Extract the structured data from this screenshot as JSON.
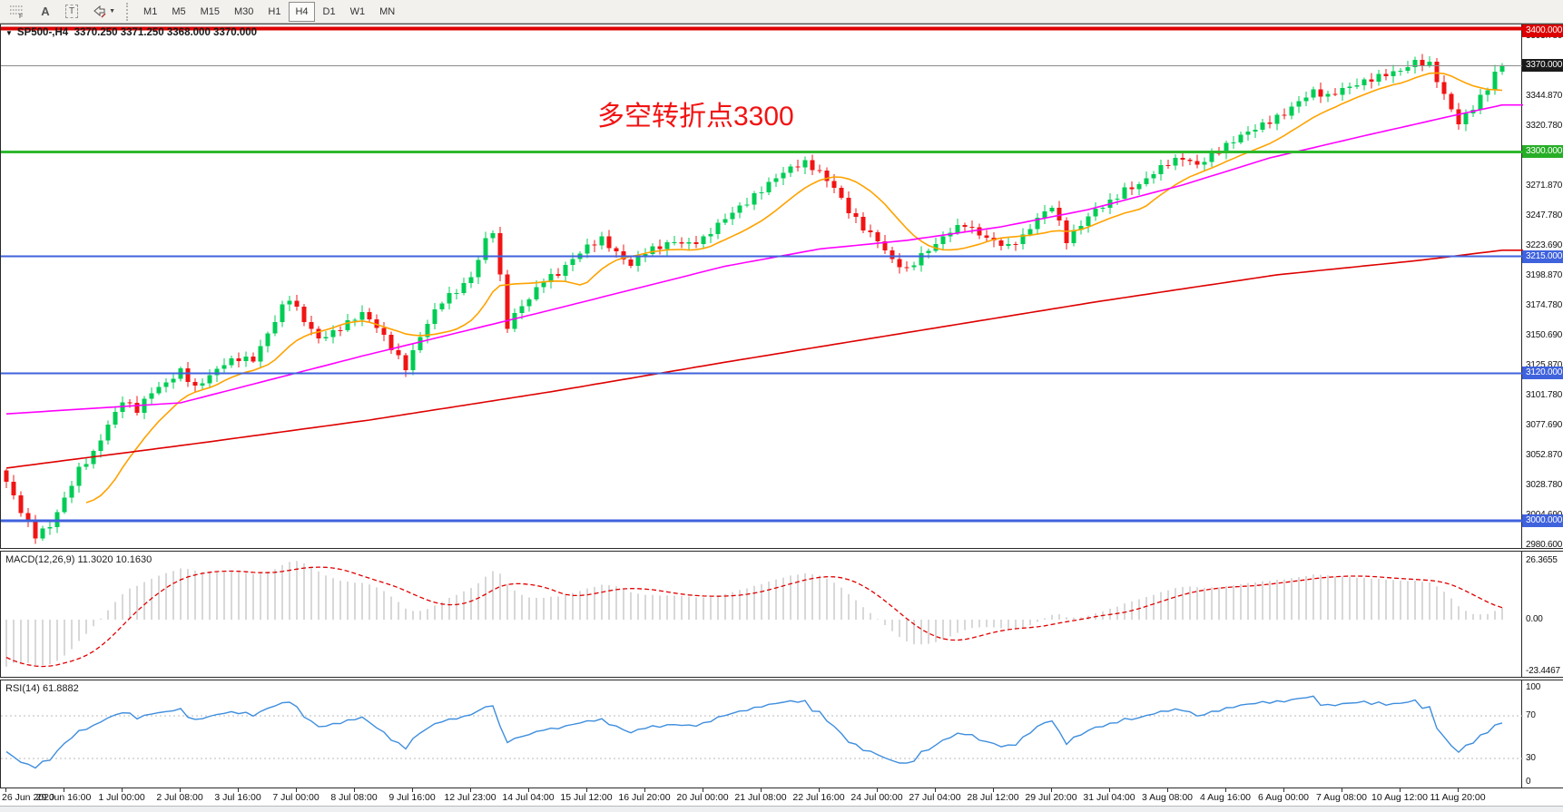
{
  "toolbar": {
    "icons": [
      {
        "name": "fibonacci-grid-icon"
      },
      {
        "name": "text-label-icon",
        "glyph": "A"
      },
      {
        "name": "text-box-icon",
        "glyph": "T"
      },
      {
        "name": "arrows-icon"
      }
    ],
    "timeframes": [
      "M1",
      "M5",
      "M15",
      "M30",
      "H1",
      "H4",
      "D1",
      "W1",
      "MN"
    ],
    "active_timeframe": "H4"
  },
  "chart": {
    "header": "SP500-,H4  3370.250 3371.250 3368.000 3370.000",
    "annotation": {
      "text": "多空转折点3300",
      "color": "#f21313"
    },
    "current_price": "3370.000",
    "price_axis": {
      "ticks": [
        [
          "3393.780",
          3393.78
        ],
        [
          "3344.870",
          3344.87
        ],
        [
          "3320.780",
          3320.78
        ],
        [
          "3296.690",
          3296.69
        ],
        [
          "3271.870",
          3271.87
        ],
        [
          "3247.780",
          3247.78
        ],
        [
          "3223.690",
          3223.69
        ],
        [
          "3198.870",
          3198.87
        ],
        [
          "3174.780",
          3174.78
        ],
        [
          "3150.690",
          3150.69
        ],
        [
          "3125.870",
          3125.87
        ],
        [
          "3101.780",
          3101.78
        ],
        [
          "3077.690",
          3077.69
        ],
        [
          "3052.870",
          3052.87
        ],
        [
          "3028.780",
          3028.78
        ],
        [
          "3004.690",
          3004.69
        ],
        [
          "2980.600",
          2980.6
        ]
      ],
      "badges": [
        {
          "text": "3400.000",
          "price": 3400,
          "bg": "#dd0000"
        },
        {
          "text": "3370.000",
          "price": 3370,
          "bg": "#1a1a1a"
        },
        {
          "text": "3300.000",
          "price": 3300,
          "bg": "#27ae27"
        },
        {
          "text": "3215.000",
          "price": 3215,
          "bg": "#3f62dd"
        },
        {
          "text": "3120.000",
          "price": 3120,
          "bg": "#3f62dd"
        },
        {
          "text": "3000.000",
          "price": 3000,
          "bg": "#3f62dd"
        }
      ]
    },
    "levels": [
      {
        "price": 3400,
        "color": "#dd0000",
        "width": 4
      },
      {
        "price": 3370,
        "color": "#8c8c8c",
        "width": 1
      },
      {
        "price": 3300,
        "color": "#2db92d",
        "width": 3
      },
      {
        "price": 3215,
        "color": "#3f62dd",
        "width": 2
      },
      {
        "price": 3120,
        "color": "#3f62dd",
        "width": 2
      },
      {
        "price": 3000,
        "color": "#3f62dd",
        "width": 3
      }
    ],
    "series": {
      "type": "candlestick",
      "bars": 207,
      "bull_color": "#00cc55",
      "bear_color": "#f01414",
      "close_anchors": [
        [
          0,
          3032
        ],
        [
          2,
          3008
        ],
        [
          4,
          2988
        ],
        [
          6,
          2996
        ],
        [
          8,
          3018
        ],
        [
          10,
          3042
        ],
        [
          12,
          3055
        ],
        [
          14,
          3078
        ],
        [
          16,
          3098
        ],
        [
          18,
          3090
        ],
        [
          20,
          3105
        ],
        [
          22,
          3112
        ],
        [
          24,
          3122
        ],
        [
          26,
          3108
        ],
        [
          28,
          3118
        ],
        [
          30,
          3128
        ],
        [
          32,
          3132
        ],
        [
          34,
          3131
        ],
        [
          36,
          3152
        ],
        [
          38,
          3174
        ],
        [
          39,
          3181
        ],
        [
          41,
          3163
        ],
        [
          43,
          3148
        ],
        [
          45,
          3153
        ],
        [
          47,
          3161
        ],
        [
          49,
          3169
        ],
        [
          51,
          3158
        ],
        [
          53,
          3141
        ],
        [
          55,
          3124
        ],
        [
          56,
          3138
        ],
        [
          58,
          3161
        ],
        [
          60,
          3179
        ],
        [
          62,
          3187
        ],
        [
          64,
          3198
        ],
        [
          66,
          3228
        ],
        [
          67,
          3236
        ],
        [
          68,
          3198
        ],
        [
          69,
          3158
        ],
        [
          70,
          3168
        ],
        [
          72,
          3181
        ],
        [
          74,
          3196
        ],
        [
          76,
          3201
        ],
        [
          78,
          3213
        ],
        [
          80,
          3223
        ],
        [
          82,
          3229
        ],
        [
          84,
          3218
        ],
        [
          86,
          3208
        ],
        [
          88,
          3219
        ],
        [
          90,
          3223
        ],
        [
          92,
          3227
        ],
        [
          94,
          3225
        ],
        [
          96,
          3229
        ],
        [
          98,
          3241
        ],
        [
          100,
          3251
        ],
        [
          102,
          3259
        ],
        [
          104,
          3269
        ],
        [
          106,
          3279
        ],
        [
          108,
          3287
        ],
        [
          110,
          3291
        ],
        [
          112,
          3283
        ],
        [
          114,
          3271
        ],
        [
          116,
          3252
        ],
        [
          118,
          3238
        ],
        [
          120,
          3228
        ],
        [
          122,
          3212
        ],
        [
          124,
          3204
        ],
        [
          126,
          3216
        ],
        [
          128,
          3225
        ],
        [
          130,
          3236
        ],
        [
          132,
          3241
        ],
        [
          134,
          3233
        ],
        [
          136,
          3227
        ],
        [
          138,
          3223
        ],
        [
          140,
          3231
        ],
        [
          142,
          3246
        ],
        [
          144,
          3256
        ],
        [
          146,
          3228
        ],
        [
          148,
          3241
        ],
        [
          150,
          3253
        ],
        [
          152,
          3259
        ],
        [
          154,
          3269
        ],
        [
          156,
          3273
        ],
        [
          158,
          3283
        ],
        [
          160,
          3291
        ],
        [
          162,
          3295
        ],
        [
          164,
          3289
        ],
        [
          166,
          3297
        ],
        [
          168,
          3305
        ],
        [
          170,
          3313
        ],
        [
          172,
          3319
        ],
        [
          174,
          3325
        ],
        [
          176,
          3331
        ],
        [
          178,
          3341
        ],
        [
          180,
          3349
        ],
        [
          182,
          3345
        ],
        [
          184,
          3351
        ],
        [
          186,
          3355
        ],
        [
          188,
          3359
        ],
        [
          190,
          3363
        ],
        [
          192,
          3366
        ],
        [
          194,
          3373
        ],
        [
          196,
          3371
        ],
        [
          198,
          3346
        ],
        [
          200,
          3323
        ],
        [
          202,
          3336
        ],
        [
          204,
          3352
        ],
        [
          205,
          3364
        ],
        [
          206,
          3370
        ]
      ]
    },
    "overlays": [
      {
        "name": "ma-fast",
        "color": "#ffa200",
        "type": "sma",
        "period": 12
      },
      {
        "name": "ma-medium",
        "color": "#ff00ff",
        "type": "anchors",
        "anchors": [
          [
            0,
            3087
          ],
          [
            24,
            3096
          ],
          [
            49,
            3134
          ],
          [
            74,
            3170
          ],
          [
            99,
            3207
          ],
          [
            112,
            3221
          ],
          [
            124,
            3228
          ],
          [
            137,
            3239
          ],
          [
            149,
            3253
          ],
          [
            162,
            3273
          ],
          [
            174,
            3295
          ],
          [
            187,
            3313
          ],
          [
            199,
            3329
          ],
          [
            206,
            3338
          ]
        ]
      },
      {
        "name": "ma-slow",
        "color": "#df0000",
        "type": "anchors",
        "anchors": [
          [
            0,
            3043
          ],
          [
            25,
            3062
          ],
          [
            50,
            3082
          ],
          [
            75,
            3105
          ],
          [
            100,
            3130
          ],
          [
            125,
            3154
          ],
          [
            150,
            3178
          ],
          [
            175,
            3200
          ],
          [
            195,
            3212
          ],
          [
            206,
            3220
          ]
        ]
      }
    ]
  },
  "macd": {
    "label": "MACD(12,26,9)",
    "values": "11.3020 10.1630",
    "axis_max": 26.3655,
    "axis_min": -23.4467,
    "axis_labels": [
      "26.3655",
      "0.00",
      "-23.4467"
    ],
    "histogram_color": "#c8c8c8",
    "signal_color": "#e00000"
  },
  "rsi": {
    "label": "RSI(14)",
    "value": "61.8882",
    "axis_labels": [
      "100",
      "70",
      "30",
      "0"
    ],
    "level_lines": [
      70,
      30
    ],
    "line_color": "#3e8ede"
  },
  "time_axis": {
    "labels": [
      "26 Jun 2020",
      "29 Jun 16:00",
      "1 Jul 00:00",
      "2 Jul 08:00",
      "3 Jul 16:00",
      "7 Jul 00:00",
      "8 Jul 08:00",
      "9 Jul 16:00",
      "12 Jul 23:00",
      "14 Jul 04:00",
      "15 Jul 12:00",
      "16 Jul 20:00",
      "20 Jul 00:00",
      "21 Jul 08:00",
      "22 Jul 16:00",
      "24 Jul 00:00",
      "27 Jul 04:00",
      "28 Jul 12:00",
      "29 Jul 20:00",
      "31 Jul 04:00",
      "3 Aug 08:00",
      "4 Aug 16:00",
      "6 Aug 00:00",
      "7 Aug 08:00",
      "10 Aug 12:00",
      "11 Aug 20:00"
    ]
  }
}
